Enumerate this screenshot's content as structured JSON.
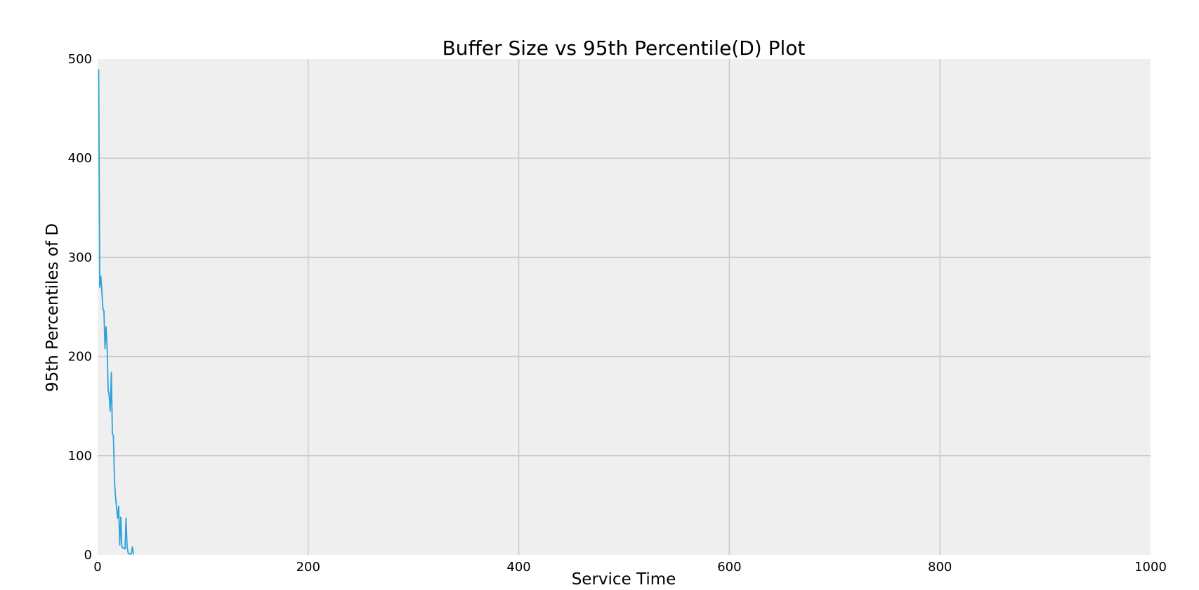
{
  "chart_data": {
    "type": "line",
    "title": "Buffer Size vs 95th Percentile(D) Plot",
    "xlabel": "Service Time",
    "ylabel": "95th Percentiles of D",
    "xlim": [
      0,
      1000
    ],
    "ylim": [
      0,
      500
    ],
    "xticks": [
      "0",
      "200",
      "400",
      "600",
      "800",
      "1000"
    ],
    "yticks": [
      "0",
      "100",
      "200",
      "300",
      "400",
      "500"
    ],
    "grid": true,
    "colors": {
      "line": "#30a2da",
      "plot_bg": "#efefef",
      "grid": "#cbcbcb"
    },
    "series": [
      {
        "values": [
          [
            1,
            489
          ],
          [
            2,
            270
          ],
          [
            3,
            281
          ],
          [
            4,
            266
          ],
          [
            5,
            248
          ],
          [
            6,
            246
          ],
          [
            7,
            208
          ],
          [
            8,
            230
          ],
          [
            9,
            210
          ],
          [
            10,
            167
          ],
          [
            11,
            160
          ],
          [
            12,
            145
          ],
          [
            13,
            184
          ],
          [
            14,
            122
          ],
          [
            15,
            120
          ],
          [
            16,
            75
          ],
          [
            17,
            58
          ],
          [
            18,
            48
          ],
          [
            19,
            37
          ],
          [
            20,
            49
          ],
          [
            21,
            10
          ],
          [
            22,
            38
          ],
          [
            23,
            8
          ],
          [
            24,
            7
          ],
          [
            25,
            7
          ],
          [
            26,
            6
          ],
          [
            27,
            37
          ],
          [
            28,
            8
          ],
          [
            29,
            2
          ],
          [
            30,
            1
          ],
          [
            31,
            1
          ],
          [
            32,
            1
          ],
          [
            33,
            8
          ],
          [
            34,
            1
          ]
        ]
      }
    ]
  }
}
